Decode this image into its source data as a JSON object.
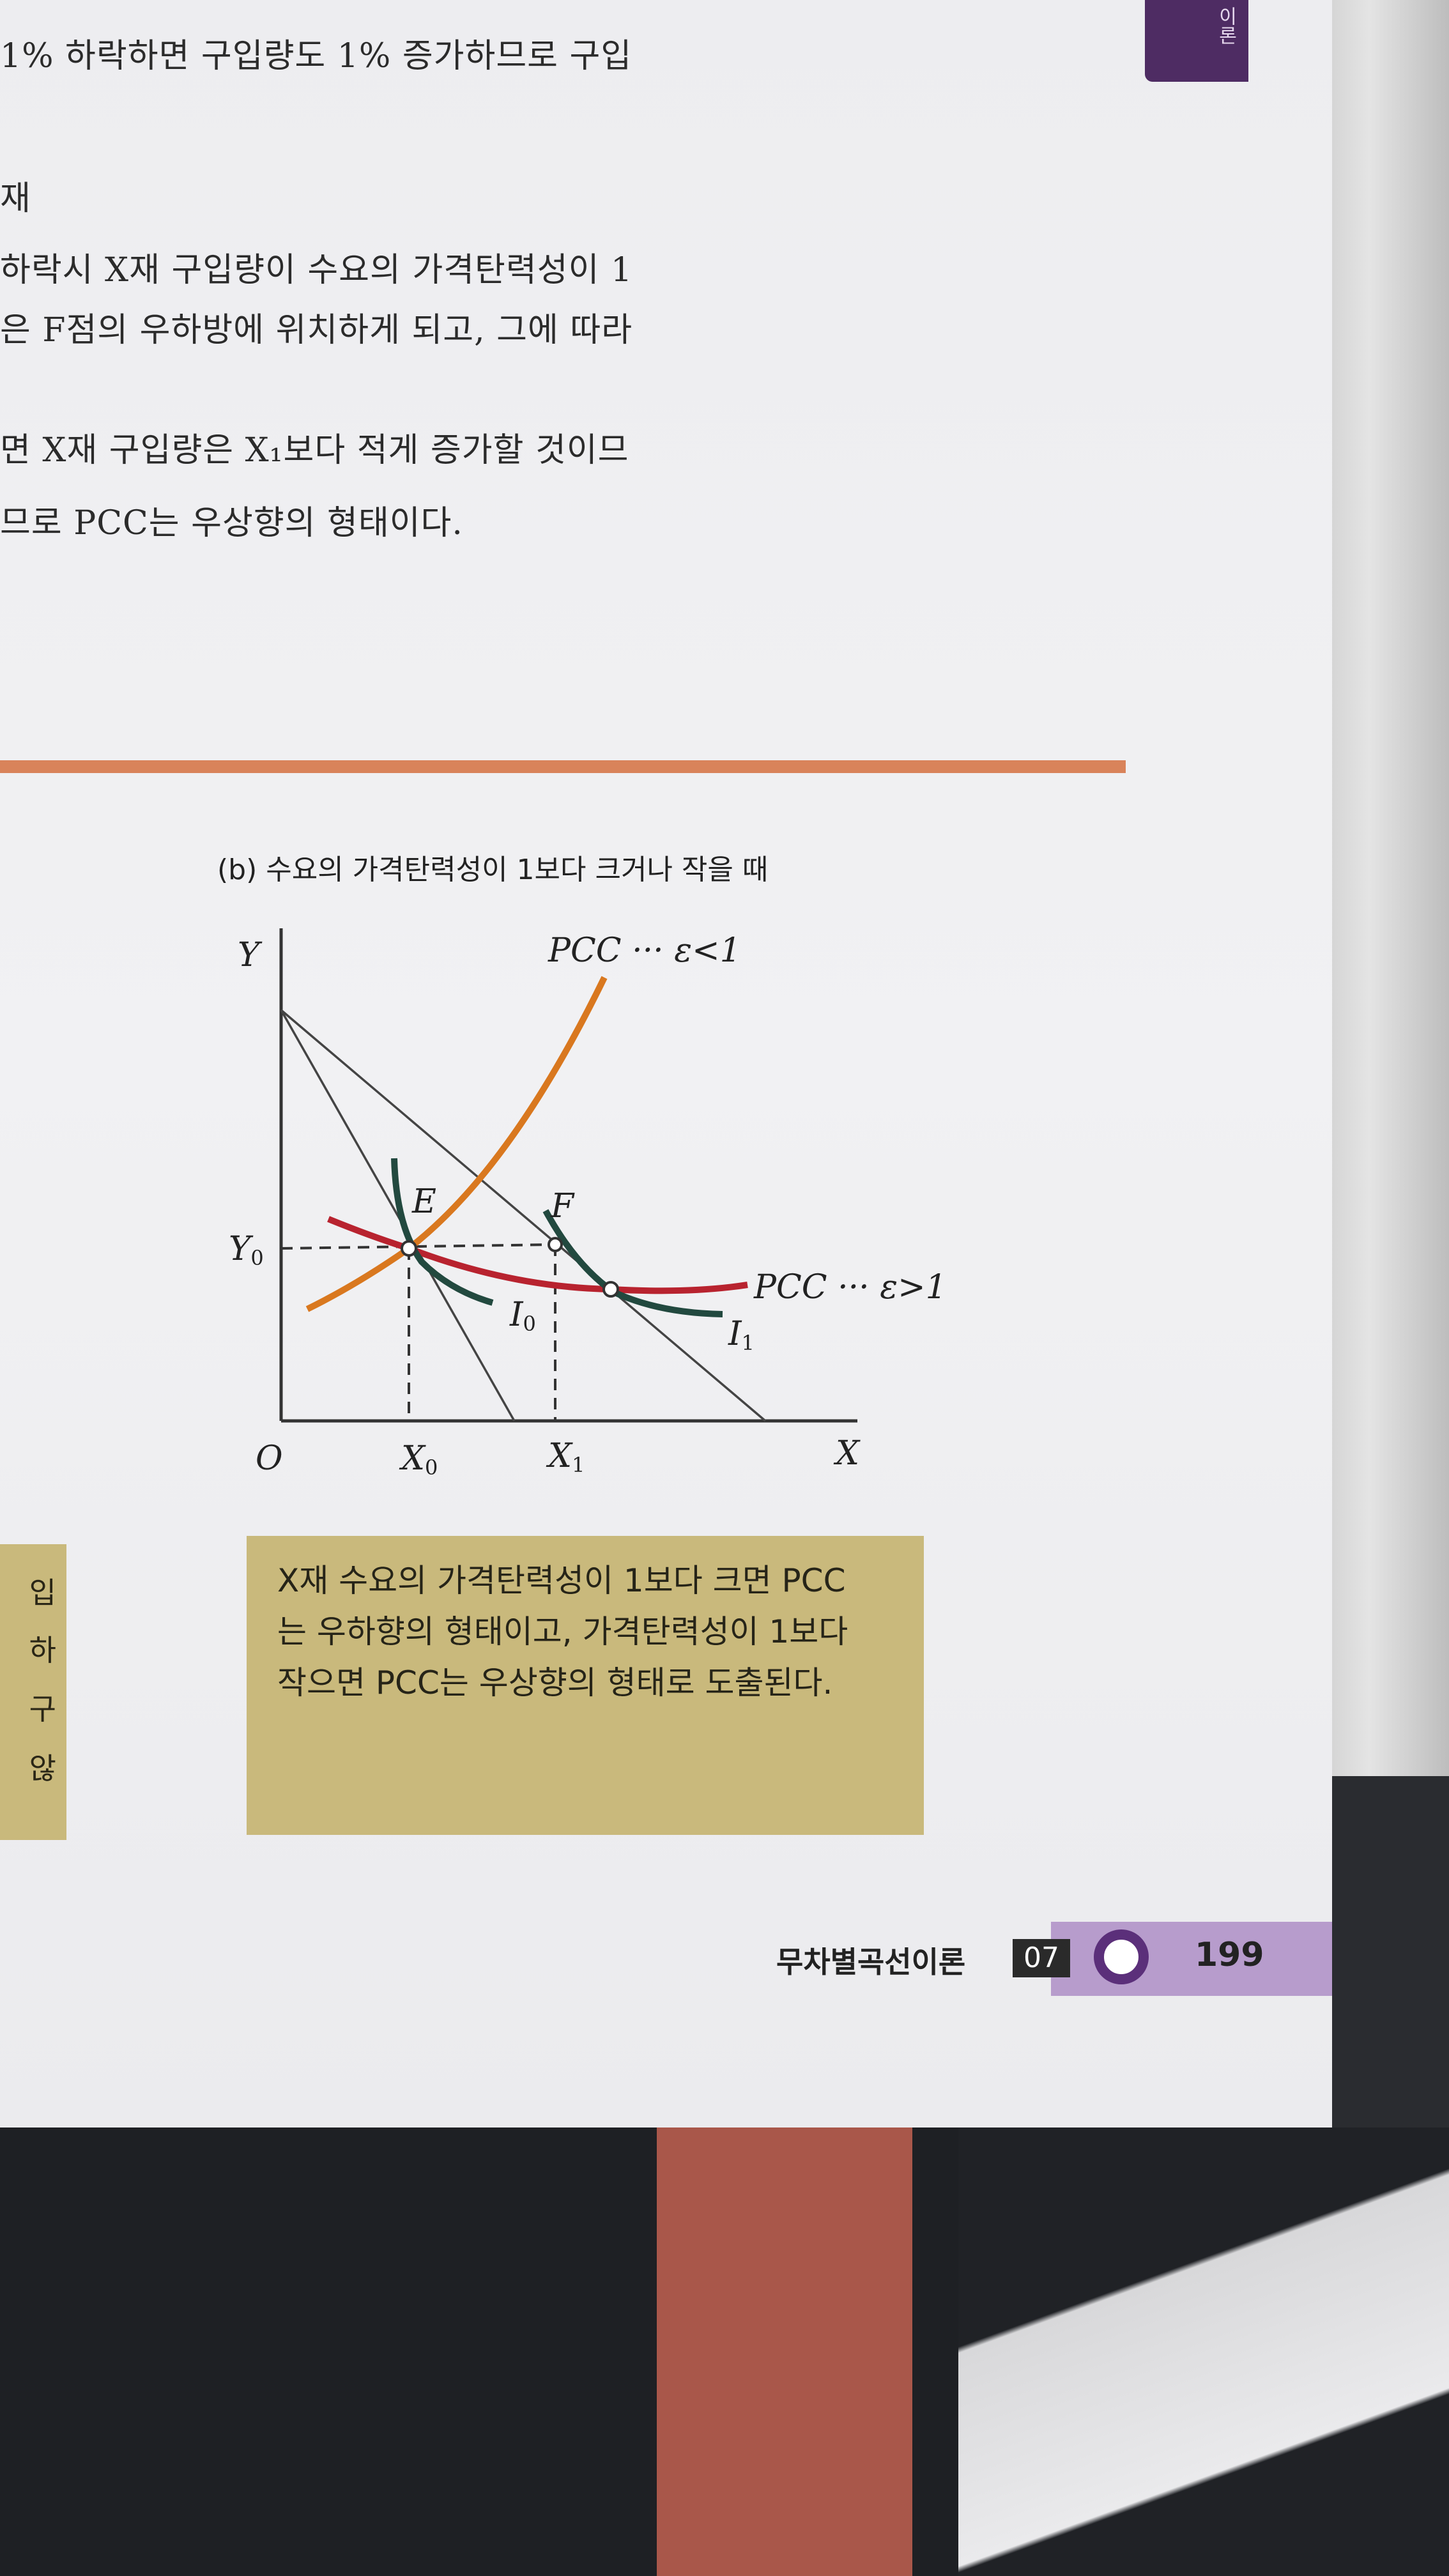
{
  "side_tab": {
    "label": "이론"
  },
  "body_lines": [
    "1% 하락하면 구입량도 1% 증가하므로 구입",
    "재",
    "하락시 X재 구입량이 수요의 가격탄력성이 1",
    "은 F점의 우하방에 위치하게 되고, 그에 따라",
    "면 X재 구입량은 X₁보다 적게 증가할 것이므",
    "므로 PCC는 우상향의 형태이다."
  ],
  "figure": {
    "caption": "(b) 수요의 가격탄력성이 1보다 크거나 작을 때",
    "labels": {
      "y_axis": "Y",
      "x_axis": "X",
      "origin": "O",
      "y0": {
        "base": "Y",
        "sub": "0"
      },
      "x0": {
        "base": "X",
        "sub": "0"
      },
      "x1": {
        "base": "X",
        "sub": "1"
      },
      "point_e": "E",
      "point_f": "F",
      "i0": {
        "base": "I",
        "sub": "0"
      },
      "i1": {
        "base": "I",
        "sub": "1"
      },
      "pcc_inelastic": "PCC ··· ε<1",
      "pcc_elastic": "PCC ··· ε>1"
    },
    "colors": {
      "pcc_inelastic": "#d9781f",
      "pcc_elastic": "#b8232f",
      "indifference": "#22493f",
      "axes": "#333333"
    }
  },
  "summary_box": {
    "lines": [
      "X재 수요의 가격탄력성이 1보다 크면 PCC",
      "는 우하향의 형태이고, 가격탄력성이 1보다",
      "작으면 PCC는 우상향의 형태로 도출된다."
    ],
    "color": "#c9b97c"
  },
  "left_box": {
    "lines": [
      "입",
      "하",
      "구",
      "않"
    ]
  },
  "footer": {
    "chapter_title": "무차별곡선이론",
    "chapter_number": "07",
    "page_number": "199",
    "accent": "#5b2f7a"
  }
}
